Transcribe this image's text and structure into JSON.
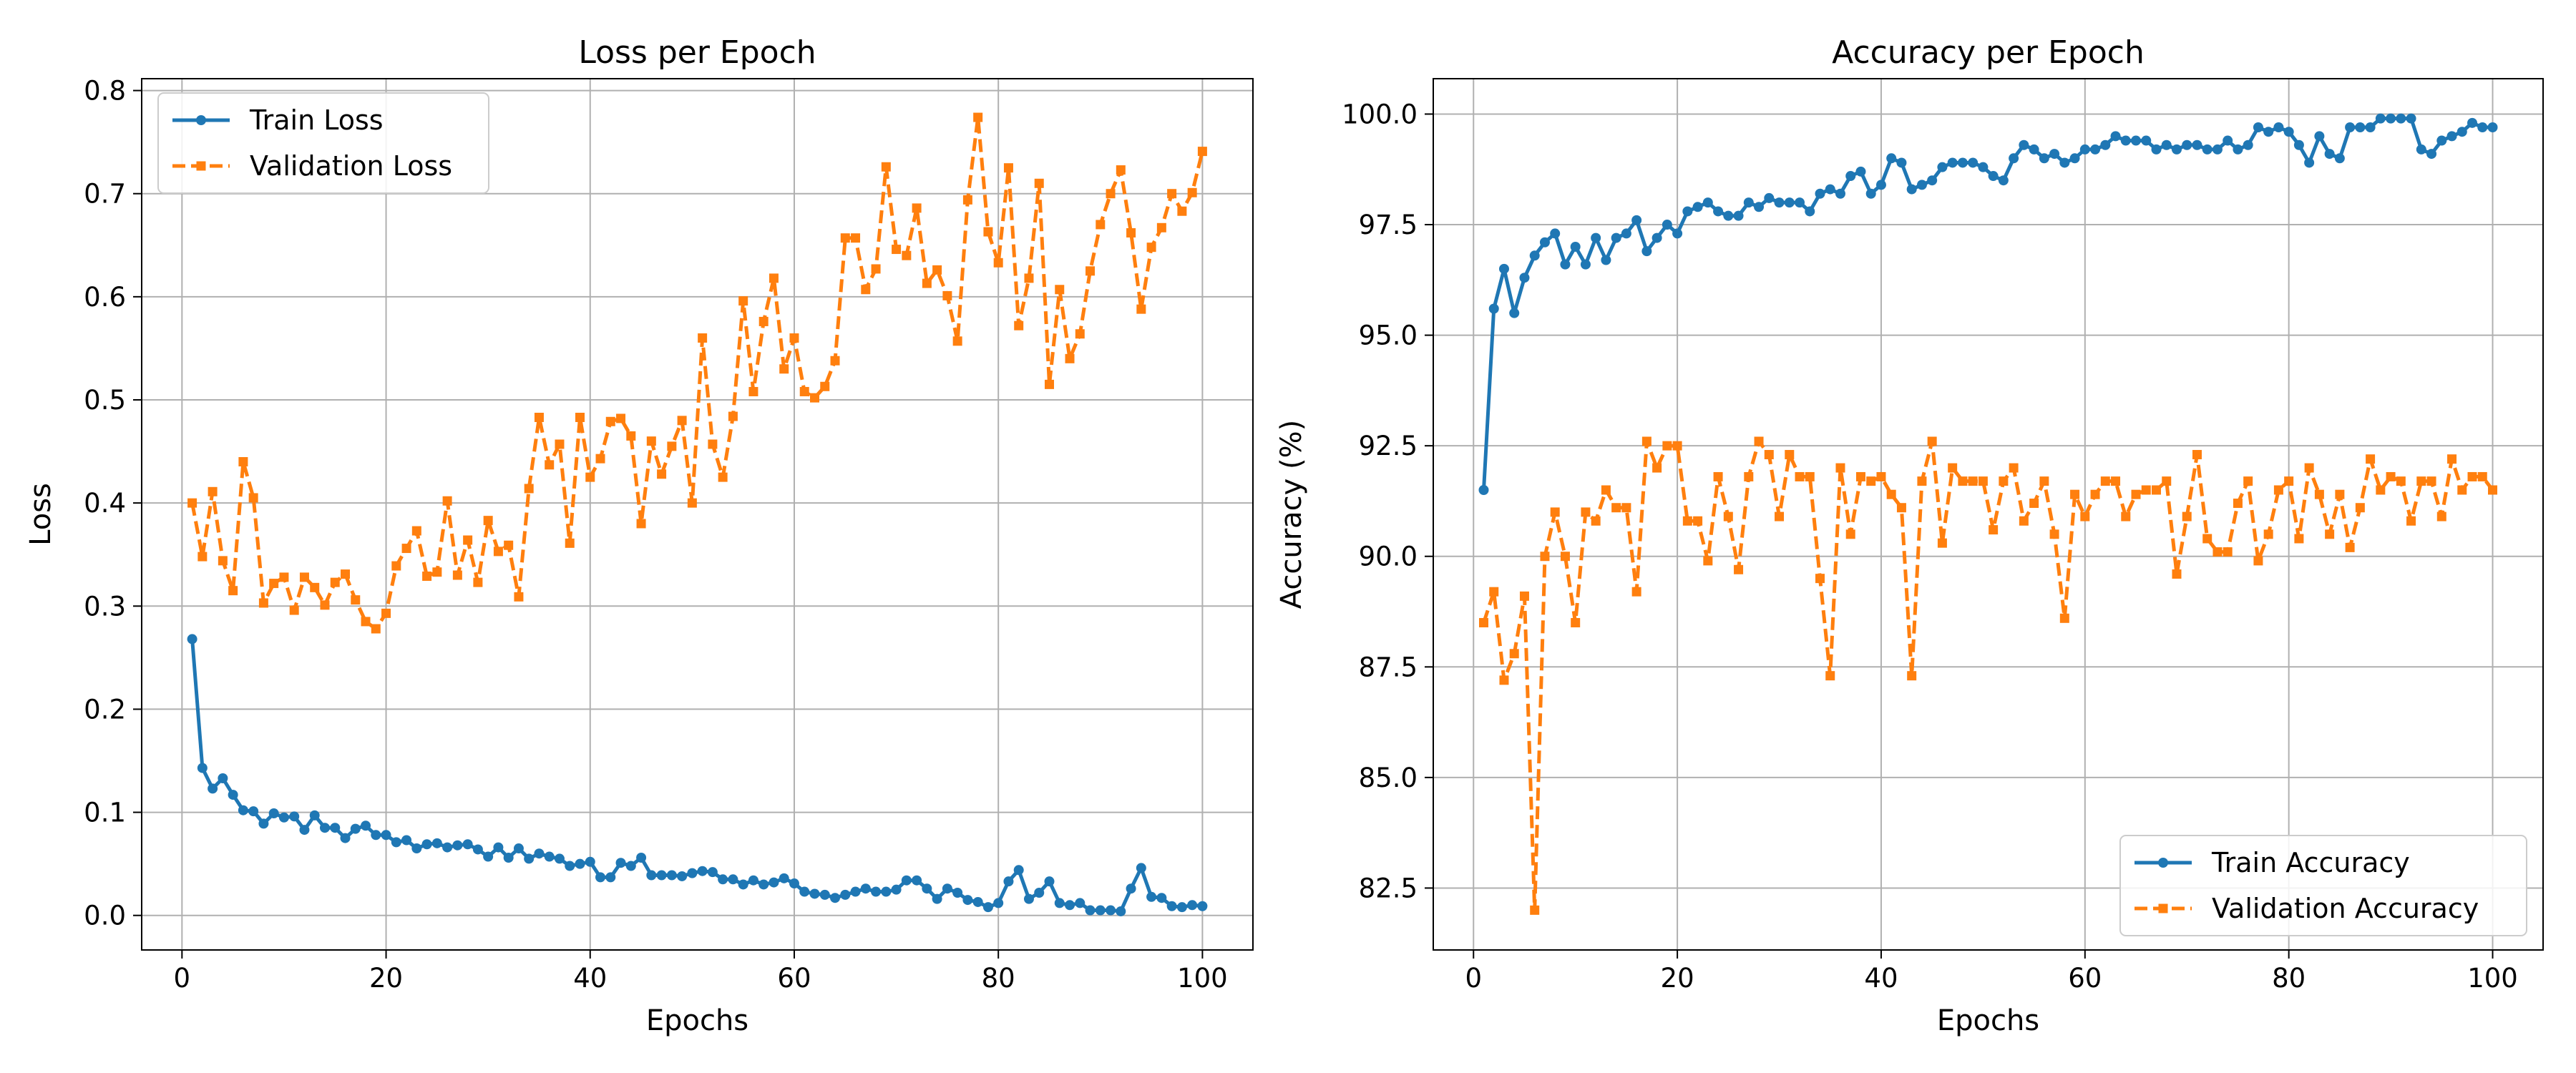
{
  "chart_data": [
    {
      "type": "line",
      "title": "Loss per Epoch",
      "xlabel": "Epochs",
      "ylabel": "Loss",
      "xlim": [
        -3.95,
        104.95
      ],
      "ylim": [
        -0.0335,
        0.8115
      ],
      "xticks": [
        0,
        20,
        40,
        60,
        80,
        100
      ],
      "yticks": [
        0.0,
        0.1,
        0.2,
        0.3,
        0.4,
        0.5,
        0.6,
        0.7,
        0.8
      ],
      "ytick_decimals": 1,
      "grid": true,
      "legend_position": "top-left",
      "x": [
        1,
        2,
        3,
        4,
        5,
        6,
        7,
        8,
        9,
        10,
        11,
        12,
        13,
        14,
        15,
        16,
        17,
        18,
        19,
        20,
        21,
        22,
        23,
        24,
        25,
        26,
        27,
        28,
        29,
        30,
        31,
        32,
        33,
        34,
        35,
        36,
        37,
        38,
        39,
        40,
        41,
        42,
        43,
        44,
        45,
        46,
        47,
        48,
        49,
        50,
        51,
        52,
        53,
        54,
        55,
        56,
        57,
        58,
        59,
        60,
        61,
        62,
        63,
        64,
        65,
        66,
        67,
        68,
        69,
        70,
        71,
        72,
        73,
        74,
        75,
        76,
        77,
        78,
        79,
        80,
        81,
        82,
        83,
        84,
        85,
        86,
        87,
        88,
        89,
        90,
        91,
        92,
        93,
        94,
        95,
        96,
        97,
        98,
        99,
        100
      ],
      "series": [
        {
          "name": "Train Loss",
          "color": "#1f77b4",
          "linestyle": "solid",
          "marker": "circle",
          "values": [
            0.268,
            0.143,
            0.123,
            0.133,
            0.117,
            0.102,
            0.101,
            0.089,
            0.099,
            0.095,
            0.096,
            0.083,
            0.097,
            0.085,
            0.085,
            0.075,
            0.084,
            0.087,
            0.078,
            0.078,
            0.071,
            0.073,
            0.065,
            0.069,
            0.07,
            0.066,
            0.068,
            0.069,
            0.064,
            0.057,
            0.066,
            0.056,
            0.065,
            0.055,
            0.06,
            0.057,
            0.055,
            0.048,
            0.05,
            0.052,
            0.037,
            0.037,
            0.051,
            0.048,
            0.056,
            0.039,
            0.039,
            0.039,
            0.038,
            0.041,
            0.043,
            0.042,
            0.035,
            0.035,
            0.03,
            0.034,
            0.03,
            0.032,
            0.036,
            0.031,
            0.023,
            0.021,
            0.02,
            0.017,
            0.02,
            0.023,
            0.026,
            0.023,
            0.023,
            0.025,
            0.034,
            0.034,
            0.026,
            0.016,
            0.026,
            0.022,
            0.015,
            0.013,
            0.008,
            0.012,
            0.033,
            0.044,
            0.016,
            0.022,
            0.033,
            0.012,
            0.01,
            0.012,
            0.005,
            0.005,
            0.005,
            0.004,
            0.026,
            0.046,
            0.018,
            0.017,
            0.009,
            0.008,
            0.01,
            0.009
          ]
        },
        {
          "name": "Validation Loss",
          "color": "#ff7f0e",
          "linestyle": "dashed",
          "marker": "square",
          "values": [
            0.4,
            0.348,
            0.411,
            0.344,
            0.315,
            0.44,
            0.405,
            0.303,
            0.322,
            0.328,
            0.296,
            0.328,
            0.318,
            0.301,
            0.323,
            0.331,
            0.306,
            0.285,
            0.278,
            0.293,
            0.339,
            0.356,
            0.373,
            0.329,
            0.333,
            0.402,
            0.33,
            0.364,
            0.323,
            0.383,
            0.353,
            0.359,
            0.309,
            0.414,
            0.483,
            0.437,
            0.457,
            0.361,
            0.483,
            0.425,
            0.443,
            0.479,
            0.482,
            0.465,
            0.38,
            0.46,
            0.428,
            0.455,
            0.48,
            0.4,
            0.56,
            0.457,
            0.425,
            0.484,
            0.596,
            0.508,
            0.576,
            0.618,
            0.53,
            0.56,
            0.508,
            0.502,
            0.513,
            0.538,
            0.657,
            0.657,
            0.607,
            0.627,
            0.726,
            0.646,
            0.64,
            0.686,
            0.613,
            0.626,
            0.601,
            0.557,
            0.694,
            0.774,
            0.663,
            0.633,
            0.725,
            0.572,
            0.618,
            0.71,
            0.515,
            0.607,
            0.54,
            0.564,
            0.625,
            0.67,
            0.7,
            0.723,
            0.662,
            0.588,
            0.648,
            0.667,
            0.7,
            0.683,
            0.701,
            0.741
          ]
        }
      ]
    },
    {
      "type": "line",
      "title": "Accuracy per Epoch",
      "xlabel": "Epochs",
      "ylabel": "Accuracy (%)",
      "xlim": [
        -3.95,
        104.95
      ],
      "ylim": [
        81.1,
        100.8
      ],
      "xticks": [
        0,
        20,
        40,
        60,
        80,
        100
      ],
      "yticks": [
        82.5,
        85.0,
        87.5,
        90.0,
        92.5,
        95.0,
        97.5,
        100.0
      ],
      "ytick_decimals": 1,
      "grid": true,
      "legend_position": "bottom-right",
      "x": [
        1,
        2,
        3,
        4,
        5,
        6,
        7,
        8,
        9,
        10,
        11,
        12,
        13,
        14,
        15,
        16,
        17,
        18,
        19,
        20,
        21,
        22,
        23,
        24,
        25,
        26,
        27,
        28,
        29,
        30,
        31,
        32,
        33,
        34,
        35,
        36,
        37,
        38,
        39,
        40,
        41,
        42,
        43,
        44,
        45,
        46,
        47,
        48,
        49,
        50,
        51,
        52,
        53,
        54,
        55,
        56,
        57,
        58,
        59,
        60,
        61,
        62,
        63,
        64,
        65,
        66,
        67,
        68,
        69,
        70,
        71,
        72,
        73,
        74,
        75,
        76,
        77,
        78,
        79,
        80,
        81,
        82,
        83,
        84,
        85,
        86,
        87,
        88,
        89,
        90,
        91,
        92,
        93,
        94,
        95,
        96,
        97,
        98,
        99,
        100
      ],
      "series": [
        {
          "name": "Train Accuracy",
          "color": "#1f77b4",
          "linestyle": "solid",
          "marker": "circle",
          "values": [
            91.5,
            95.6,
            96.5,
            95.5,
            96.3,
            96.8,
            97.1,
            97.3,
            96.6,
            97.0,
            96.6,
            97.2,
            96.7,
            97.2,
            97.3,
            97.6,
            96.9,
            97.2,
            97.5,
            97.3,
            97.8,
            97.9,
            98.0,
            97.8,
            97.7,
            97.7,
            98.0,
            97.9,
            98.1,
            98.0,
            98.0,
            98.0,
            97.8,
            98.2,
            98.3,
            98.2,
            98.6,
            98.7,
            98.2,
            98.4,
            99.0,
            98.9,
            98.3,
            98.4,
            98.5,
            98.8,
            98.9,
            98.9,
            98.9,
            98.8,
            98.6,
            98.5,
            99.0,
            99.3,
            99.2,
            99.0,
            99.1,
            98.9,
            99.0,
            99.2,
            99.2,
            99.3,
            99.5,
            99.4,
            99.4,
            99.4,
            99.2,
            99.3,
            99.2,
            99.3,
            99.3,
            99.2,
            99.2,
            99.4,
            99.2,
            99.3,
            99.7,
            99.6,
            99.7,
            99.6,
            99.3,
            98.9,
            99.5,
            99.1,
            99.0,
            99.7,
            99.7,
            99.7,
            99.9,
            99.9,
            99.9,
            99.9,
            99.2,
            99.1,
            99.4,
            99.5,
            99.6,
            99.8,
            99.7,
            99.7
          ]
        },
        {
          "name": "Validation Accuracy",
          "color": "#ff7f0e",
          "linestyle": "dashed",
          "marker": "square",
          "values": [
            88.5,
            89.2,
            87.2,
            87.8,
            89.1,
            82.0,
            90.0,
            91.0,
            90.0,
            88.5,
            91.0,
            90.8,
            91.5,
            91.1,
            91.1,
            89.2,
            92.6,
            92.0,
            92.5,
            92.5,
            90.8,
            90.8,
            89.9,
            91.8,
            90.9,
            89.7,
            91.8,
            92.6,
            92.3,
            90.9,
            92.3,
            91.8,
            91.8,
            89.5,
            87.3,
            92.0,
            90.5,
            91.8,
            91.7,
            91.8,
            91.4,
            91.1,
            87.3,
            91.7,
            92.6,
            90.3,
            92.0,
            91.7,
            91.7,
            91.7,
            90.6,
            91.7,
            92.0,
            90.8,
            91.2,
            91.7,
            90.5,
            88.6,
            91.4,
            90.9,
            91.4,
            91.7,
            91.7,
            90.9,
            91.4,
            91.5,
            91.5,
            91.7,
            89.6,
            90.9,
            92.3,
            90.4,
            90.1,
            90.1,
            91.2,
            91.7,
            89.9,
            90.5,
            91.5,
            91.7,
            90.4,
            92.0,
            91.4,
            90.5,
            91.4,
            90.2,
            91.1,
            92.2,
            91.5,
            91.8,
            91.7,
            90.8,
            91.7,
            91.7,
            90.9,
            92.2,
            91.5,
            91.8,
            91.8,
            91.5
          ]
        }
      ]
    }
  ]
}
